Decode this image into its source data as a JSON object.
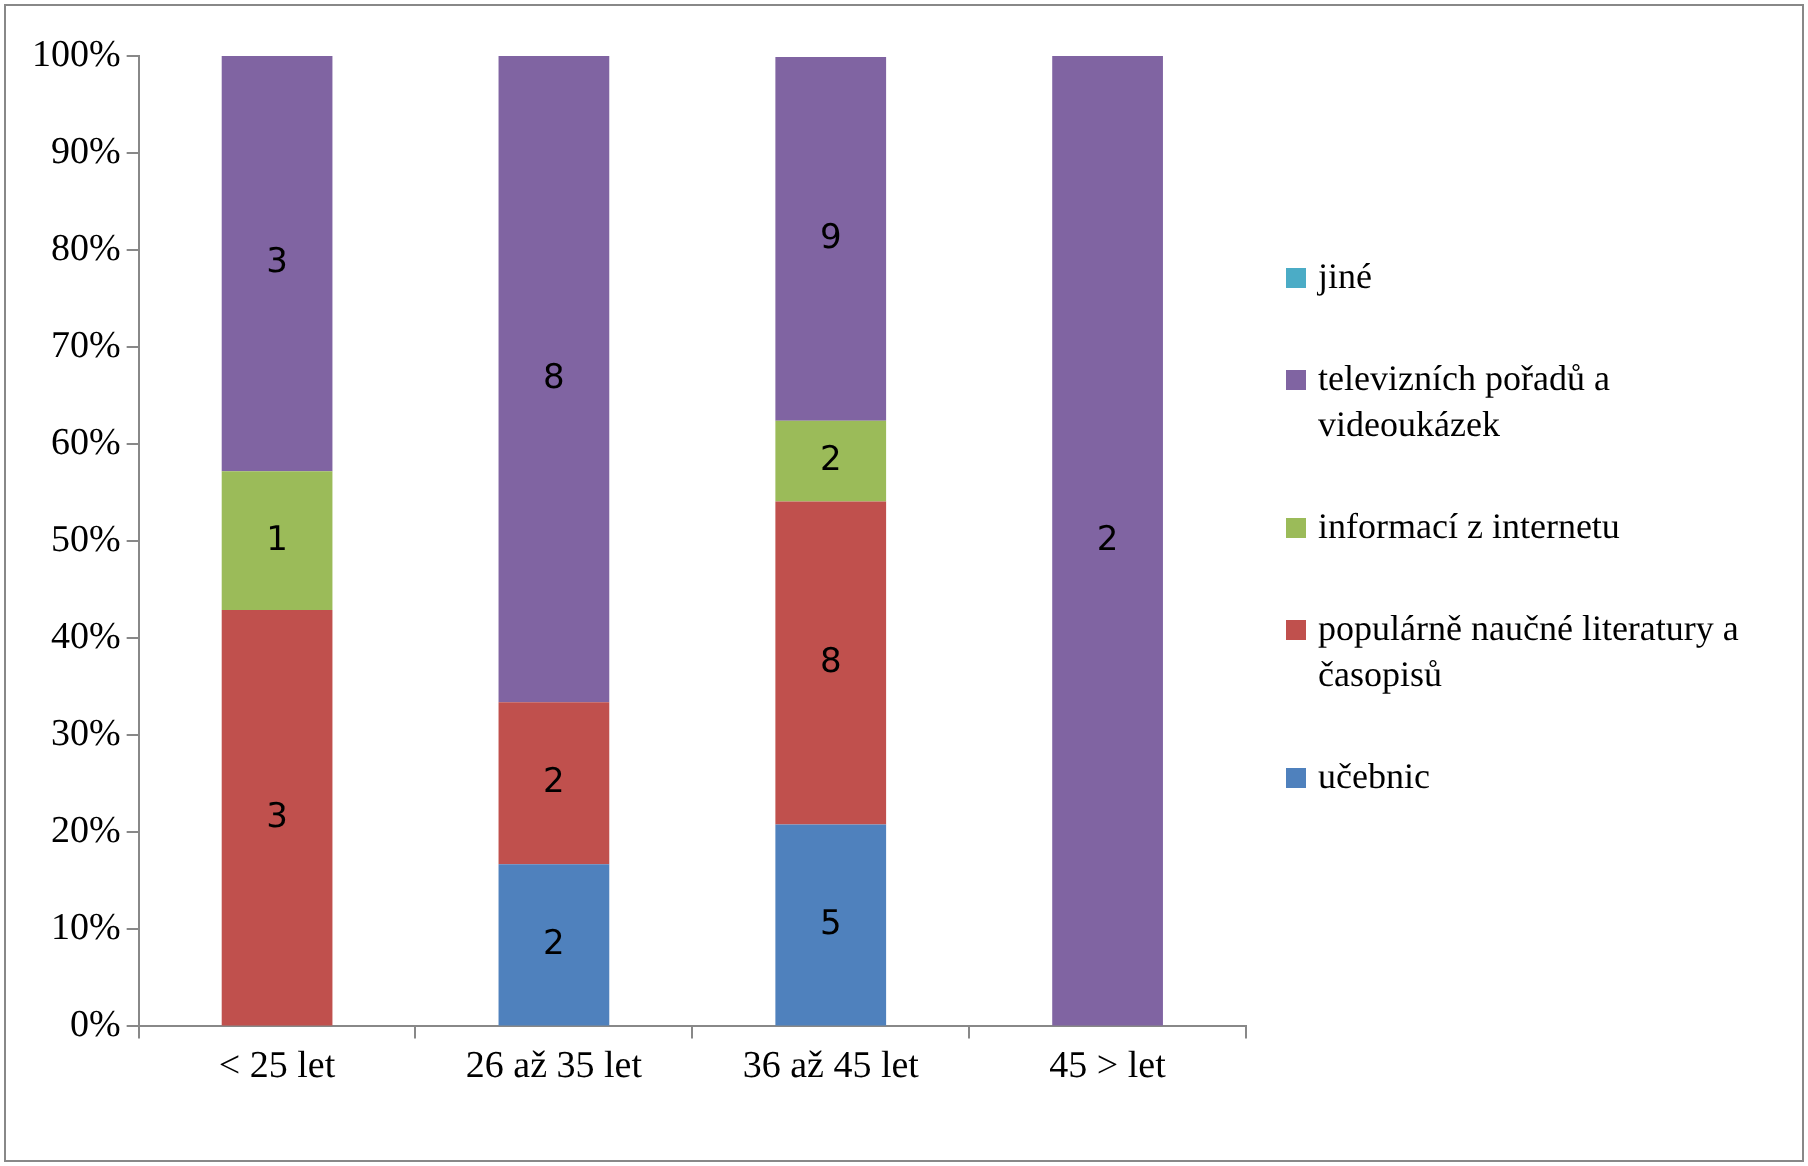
{
  "chart_data": {
    "type": "bar",
    "stacked": true,
    "legend": "right",
    "grid": false,
    "categories": [
      "< 25 let",
      "26 až 35 let",
      "36 až 45 let",
      "45 > let"
    ],
    "ylim": [
      0,
      100
    ],
    "yticks": [
      {
        "value": 0,
        "label": "0%"
      },
      {
        "value": 10,
        "label": "10%"
      },
      {
        "value": 20,
        "label": "20%"
      },
      {
        "value": 30,
        "label": "30%"
      },
      {
        "value": 40,
        "label": "40%"
      },
      {
        "value": 50,
        "label": "50%"
      },
      {
        "value": 60,
        "label": "60%"
      },
      {
        "value": 70,
        "label": "70%"
      },
      {
        "value": 80,
        "label": "80%"
      },
      {
        "value": 90,
        "label": "90%"
      },
      {
        "value": 100,
        "label": "100%"
      }
    ],
    "series": [
      {
        "name": "učebnic",
        "color": "#4f81bd",
        "values": [
          0,
          16.7,
          20.8,
          0
        ]
      },
      {
        "name": "populárně naučné literatury a časopisů",
        "color": "#c0504d",
        "values": [
          42.9,
          16.7,
          33.3,
          0
        ]
      },
      {
        "name": "informací z internetu",
        "color": "#9bbb59",
        "values": [
          14.3,
          0,
          8.3,
          0
        ]
      },
      {
        "name": "televizních pořadů a videoukázek",
        "color": "#8064a2",
        "values": [
          42.9,
          66.7,
          37.5,
          100
        ]
      },
      {
        "name": "jiné",
        "color": "#4bacc6",
        "values": [
          0,
          0,
          0,
          0
        ]
      }
    ],
    "annotations": [
      "3",
      "1",
      "3",
      "2",
      "2",
      "8",
      "5",
      "8",
      "2",
      "9",
      "2"
    ]
  }
}
